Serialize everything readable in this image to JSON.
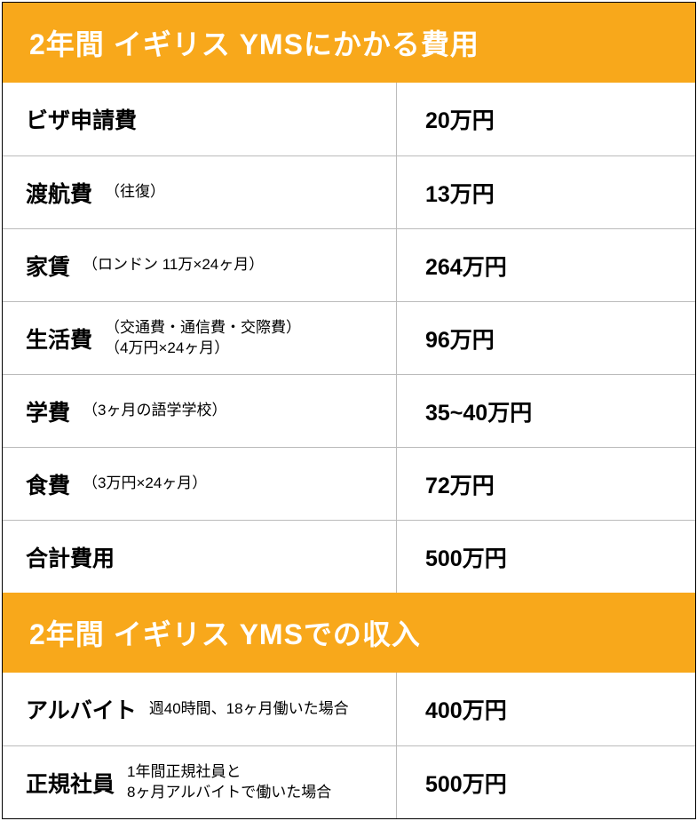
{
  "section1": {
    "title": "2年間 イギリス YMSにかかる費用",
    "header_bg": "#f8a81b",
    "header_color": "#ffffff",
    "rows": [
      {
        "label": "ビザ申請費",
        "sub": "",
        "value": "20万円"
      },
      {
        "label": "渡航費",
        "sub": "（往復）",
        "value": "13万円"
      },
      {
        "label": "家賃",
        "sub": "（ロンドン 11万×24ヶ月）",
        "value": "264万円"
      },
      {
        "label": "生活費",
        "sub": "（交通費・通信費・交際費）\n（4万円×24ヶ月）",
        "value": "96万円"
      },
      {
        "label": "学費",
        "sub": "（3ヶ月の語学学校）",
        "value": "35~40万円"
      },
      {
        "label": "食費",
        "sub": "（3万円×24ヶ月）",
        "value": "72万円"
      },
      {
        "label": "合計費用",
        "sub": "",
        "value": "500万円"
      }
    ]
  },
  "section2": {
    "title": "2年間 イギリス YMSでの収入",
    "header_bg": "#f8a81b",
    "header_color": "#ffffff",
    "rows": [
      {
        "label": "アルバイト",
        "sub": "週40時間、18ヶ月働いた場合",
        "value": "400万円"
      },
      {
        "label": "正規社員",
        "sub": "1年間正規社員と\n8ヶ月アルバイトで働いた場合",
        "value": "500万円"
      }
    ]
  }
}
